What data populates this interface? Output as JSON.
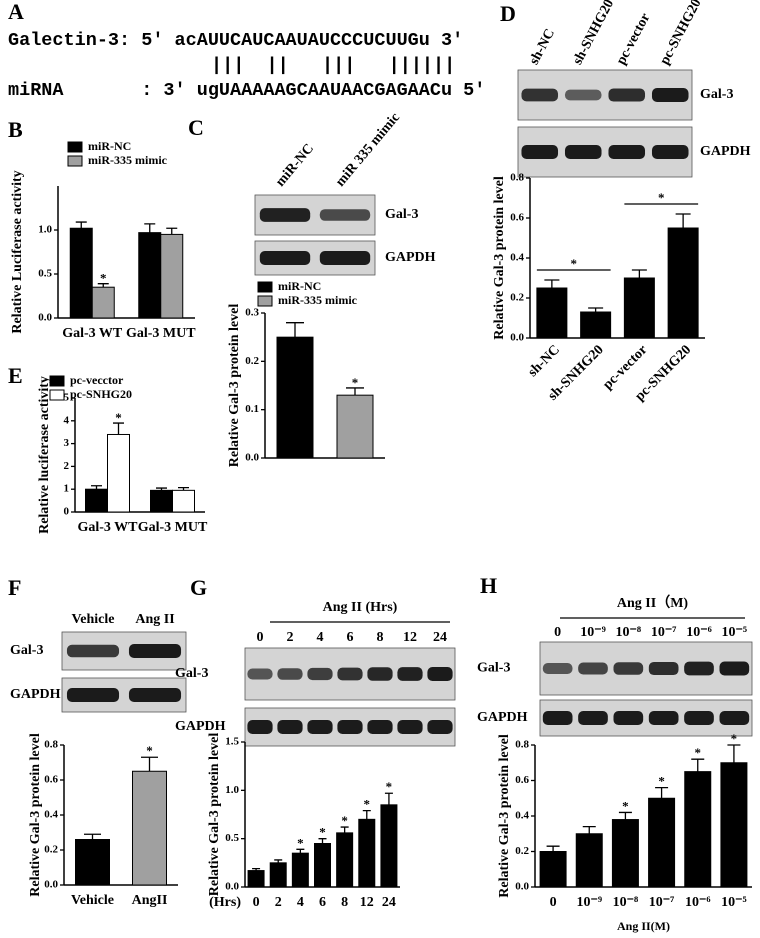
{
  "panel_labels": [
    "A",
    "B",
    "C",
    "D",
    "E",
    "F",
    "G",
    "H"
  ],
  "alignment": {
    "top": "Galectin-3: 5' acAUUCAUCAAUAUCCCUCUUGu 3'",
    "pairs": "|||  ||   |||   ||||||",
    "bottom": "miRNA       : 3' ugUAAAAAGCAAUAACGAGAACu 5'"
  },
  "blots": [
    {
      "lanes": [
        "miR-NC",
        "miR 335 mimic"
      ],
      "rows": [
        "Gal-3",
        "GAPDH"
      ]
    },
    {
      "lanes": [
        "sh-NC",
        "sh-SNHG20",
        "pc-vector",
        "pc-SNHG20"
      ],
      "rows": [
        "Gal-3",
        "GAPDH"
      ]
    },
    {
      "lanes": [
        "Vehicle",
        "Ang II"
      ],
      "rows": [
        "Gal-3",
        "GAPDH"
      ]
    },
    {
      "header": "Ang II (Hrs)",
      "lanes": [
        "0",
        "2",
        "4",
        "6",
        "8",
        "12",
        "24"
      ],
      "rows": [
        "Gal-3",
        "GAPDH"
      ]
    },
    {
      "header": "Ang II（M)",
      "lanes": [
        "0",
        "10⁻⁹",
        "10⁻⁸",
        "10⁻⁷",
        "10⁻⁶",
        "10⁻⁵"
      ],
      "rows": [
        "Gal-3",
        "GAPDH"
      ]
    }
  ],
  "chart_data": [
    {
      "type": "bar",
      "y_label": "Relative Luciferase activity",
      "categories": [
        "Gal-3 WT",
        "Gal-3 MUT"
      ],
      "series": [
        {
          "name": "miR-NC",
          "color": "#000000",
          "values": [
            1.02,
            0.97
          ],
          "errors": [
            0.07,
            0.1
          ],
          "stars": [
            null,
            null
          ]
        },
        {
          "name": "miR-335 mimic",
          "color": "#a0a0a0",
          "values": [
            0.35,
            0.95
          ],
          "errors": [
            0.04,
            0.07
          ],
          "stars": [
            "*",
            null
          ]
        }
      ],
      "ylim": [
        0,
        1.5
      ],
      "yticks": [
        {
          "value": 0,
          "label": "0.0"
        },
        0.5,
        {
          "value": 1,
          "label": "1.0"
        }
      ]
    },
    {
      "type": "bar",
      "y_label": "Relative Gal-3 protein level",
      "categories": [
        null,
        null
      ],
      "series": [
        {
          "name": "miR-NC",
          "color": "#000000",
          "values": [
            0.25,
            null
          ],
          "errors": [
            0.03,
            null
          ],
          "stars": [
            null,
            null
          ]
        },
        {
          "name": "miR-335 mimic",
          "color": "#a0a0a0",
          "values": [
            null,
            0.13
          ],
          "errors": [
            null,
            0.015
          ],
          "stars": [
            null,
            "*"
          ]
        }
      ],
      "ylim": [
        0,
        0.3
      ],
      "yticks": [
        {
          "value": 0,
          "label": "0.0"
        },
        0.1,
        0.2,
        0.3
      ]
    },
    {
      "type": "bar",
      "y_label": "Relative Gal-3 protein level",
      "categories": [
        "sh-NC",
        "sh-SNHG20",
        "pc-vector",
        "pc-SNHG20"
      ],
      "values": [
        0.25,
        0.13,
        0.3,
        0.55
      ],
      "errors": [
        0.04,
        0.02,
        0.04,
        0.07
      ],
      "color": "#000000",
      "comparisons": [
        {
          "pair": [
            0,
            1
          ],
          "text": "*"
        },
        {
          "pair": [
            2,
            3
          ],
          "text": "*"
        }
      ],
      "ylim": [
        0,
        0.8
      ],
      "yticks": [
        {
          "value": 0,
          "label": "0.0"
        },
        0.2,
        0.4,
        0.6,
        0.8
      ]
    },
    {
      "type": "bar",
      "y_label": "Relative luciferase activity",
      "categories": [
        "Gal-3 WT",
        "Gal-3 MUT"
      ],
      "series": [
        {
          "name": "pc-vecctor",
          "color": "#000000",
          "values": [
            1.0,
            0.95
          ],
          "errors": [
            0.15,
            0.1
          ],
          "stars": [
            null,
            null
          ]
        },
        {
          "name": "pc-SNHG20",
          "color": "#ffffff",
          "values": [
            3.4,
            0.95
          ],
          "errors": [
            0.5,
            0.12
          ],
          "stars": [
            "*",
            null
          ]
        }
      ],
      "ylim": [
        0,
        5
      ],
      "yticks": [
        0,
        1,
        2,
        3,
        4,
        5
      ]
    },
    {
      "type": "bar",
      "y_label": "Relative Gal-3 protein level",
      "categories": [
        "Vehicle",
        "AngII"
      ],
      "values": [
        0.26,
        0.65
      ],
      "errors": [
        0.03,
        0.08
      ],
      "colors": [
        "#000000",
        "#a0a0a0"
      ],
      "stars": [
        null,
        "*"
      ],
      "ylim": [
        0,
        0.8
      ],
      "yticks": [
        {
          "value": 0,
          "label": "0.0"
        },
        0.2,
        0.4,
        0.6,
        0.8
      ]
    },
    {
      "type": "bar",
      "y_label": "Relative Gal-3 protein level",
      "x_prefix": "(Hrs)",
      "categories": [
        "0",
        "2",
        "4",
        "6",
        "8",
        "12",
        "24"
      ],
      "values": [
        0.17,
        0.25,
        0.35,
        0.45,
        0.56,
        0.7,
        0.85
      ],
      "errors": [
        0.02,
        0.03,
        0.04,
        0.05,
        0.06,
        0.09,
        0.12
      ],
      "color": "#000000",
      "stars": [
        null,
        null,
        "*",
        "*",
        "*",
        "*",
        "*"
      ],
      "ylim": [
        0,
        1.5
      ],
      "yticks": [
        {
          "value": 0,
          "label": "0.0"
        },
        0.5,
        {
          "value": 1,
          "label": "1.0"
        },
        1.5
      ]
    },
    {
      "type": "bar",
      "y_label": "Relative Gal-3 protein level",
      "x_label": "Ang II(M)",
      "categories": [
        "0",
        "10⁻⁹",
        "10⁻⁸",
        "10⁻⁷",
        "10⁻⁶",
        "10⁻⁵"
      ],
      "values": [
        0.2,
        0.3,
        0.38,
        0.5,
        0.65,
        0.7
      ],
      "errors": [
        0.03,
        0.04,
        0.04,
        0.06,
        0.07,
        0.1
      ],
      "color": "#000000",
      "stars": [
        null,
        null,
        "*",
        "*",
        "*",
        "*"
      ],
      "ylim": [
        0,
        0.8
      ],
      "yticks": [
        {
          "value": 0,
          "label": "0.0"
        },
        0.2,
        0.4,
        0.6,
        0.8
      ]
    }
  ]
}
